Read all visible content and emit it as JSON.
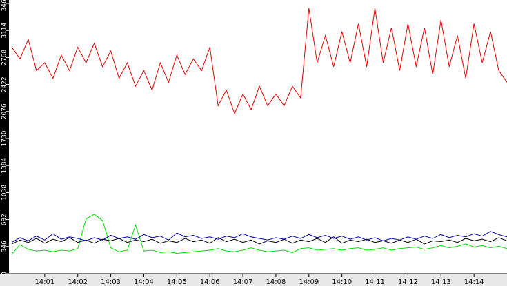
{
  "chart_data": {
    "type": "line",
    "x": [
      0,
      0.25,
      0.5,
      0.75,
      1,
      1.25,
      1.5,
      1.75,
      2,
      2.25,
      2.5,
      2.75,
      3,
      3.25,
      3.5,
      3.75,
      4,
      4.25,
      4.5,
      4.75,
      5,
      5.25,
      5.5,
      5.75,
      6,
      6.25,
      6.5,
      6.75,
      7,
      7.25,
      7.5,
      7.75,
      8,
      8.25,
      8.5,
      8.75,
      9,
      9.25,
      9.5,
      9.75,
      10,
      10.25,
      10.5,
      10.75,
      11,
      11.25,
      11.5,
      11.75,
      12,
      12.25,
      12.5,
      12.75,
      13,
      13.25,
      13.5,
      13.75,
      14,
      14.25,
      14.5,
      14.75,
      15
    ],
    "xlim": [
      0,
      15
    ],
    "xticks": [
      {
        "value": 1,
        "label": "14:01"
      },
      {
        "value": 2,
        "label": "14:02"
      },
      {
        "value": 3,
        "label": "14:03"
      },
      {
        "value": 4,
        "label": "14:04"
      },
      {
        "value": 5,
        "label": "14:05"
      },
      {
        "value": 6,
        "label": "14:06"
      },
      {
        "value": 7,
        "label": "14:07"
      },
      {
        "value": 8,
        "label": "14:08"
      },
      {
        "value": 9,
        "label": "14:09"
      },
      {
        "value": 10,
        "label": "14:10"
      },
      {
        "value": 11,
        "label": "14:11"
      },
      {
        "value": 12,
        "label": "14:12"
      },
      {
        "value": 13,
        "label": "14:13"
      },
      {
        "value": 14,
        "label": "14:14"
      }
    ],
    "ylim": [
      0,
      3460
    ],
    "yticks": [
      0,
      346,
      692,
      1038,
      1384,
      1730,
      2076,
      2422,
      2768,
      3114,
      3460
    ],
    "series": [
      {
        "color": "#e00000",
        "values": [
          2900,
          2750,
          3000,
          2600,
          2700,
          2500,
          2800,
          2600,
          2900,
          2700,
          2950,
          2650,
          2850,
          2500,
          2700,
          2400,
          2600,
          2350,
          2700,
          2450,
          2800,
          2550,
          2750,
          2600,
          2900,
          2150,
          2350,
          2050,
          2300,
          2100,
          2400,
          2150,
          2300,
          2150,
          2400,
          2250,
          3400,
          2700,
          3050,
          2650,
          3100,
          2700,
          3200,
          2650,
          3400,
          2700,
          3150,
          2600,
          3200,
          2650,
          3150,
          2550,
          3250,
          2650,
          3050,
          2500,
          3200,
          2700,
          3100,
          2600,
          2450
        ]
      },
      {
        "color": "#00e000",
        "values": [
          250,
          370,
          310,
          290,
          300,
          280,
          300,
          290,
          320,
          700,
          760,
          680,
          330,
          280,
          300,
          620,
          290,
          300,
          270,
          280,
          260,
          270,
          280,
          290,
          300,
          320,
          290,
          280,
          300,
          330,
          300,
          280,
          290,
          300,
          270,
          320,
          330,
          300,
          310,
          320,
          300,
          320,
          330,
          300,
          310,
          330,
          300,
          320,
          330,
          340,
          310,
          330,
          360,
          330,
          350,
          380,
          340,
          360,
          330,
          350,
          320
        ]
      },
      {
        "color": "#000000",
        "values": [
          380,
          430,
          400,
          450,
          390,
          440,
          410,
          460,
          400,
          430,
          390,
          440,
          420,
          450,
          400,
          430,
          410,
          440,
          390,
          420,
          400,
          450,
          410,
          430,
          390,
          460,
          410,
          440,
          400,
          430,
          380,
          420,
          400,
          440,
          390,
          430,
          410,
          450,
          400,
          470,
          390,
          430,
          410,
          440,
          400,
          420,
          390,
          430,
          400,
          440,
          380,
          420,
          410,
          430,
          400,
          450,
          420,
          440,
          410,
          460,
          420
        ]
      },
      {
        "color": "#0000b0",
        "values": [
          400,
          460,
          420,
          480,
          430,
          510,
          440,
          470,
          450,
          420,
          460,
          430,
          490,
          450,
          470,
          440,
          500,
          460,
          480,
          430,
          520,
          470,
          490,
          450,
          470,
          440,
          480,
          460,
          510,
          470,
          450,
          430,
          460,
          440,
          480,
          450,
          500,
          460,
          490,
          450,
          480,
          440,
          470,
          430,
          460,
          420,
          450,
          430,
          470,
          440,
          480,
          450,
          500,
          460,
          490,
          470,
          510,
          480,
          540,
          500,
          470
        ]
      }
    ]
  }
}
